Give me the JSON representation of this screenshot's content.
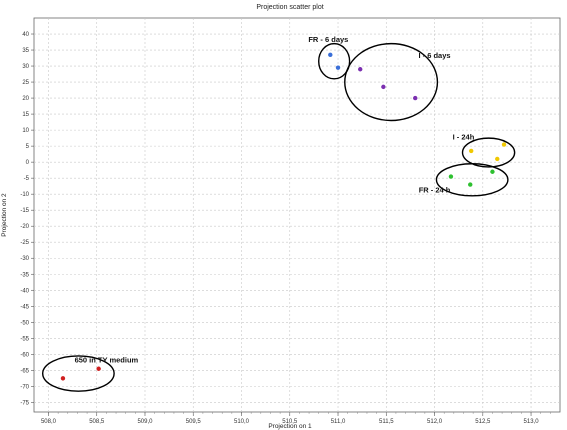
{
  "chart_data": {
    "type": "scatter",
    "title": "Projection scatter plot",
    "xlabel": "Projection on 1",
    "ylabel": "Projection on 2",
    "xlim": [
      507.85,
      513.3
    ],
    "ylim": [
      -78,
      45
    ],
    "xticks": [
      508.0,
      508.5,
      509.0,
      509.5,
      510.0,
      510.5,
      511.0,
      511.5,
      512.0,
      512.5,
      513.0
    ],
    "xtick_labels": [
      "508,0",
      "508,5",
      "509,0",
      "509,5",
      "510,0",
      "510,5",
      "511,0",
      "511,5",
      "512,0",
      "512,5",
      "513,0"
    ],
    "yticks": [
      40,
      35,
      30,
      25,
      20,
      15,
      10,
      5,
      0,
      -5,
      -10,
      -15,
      -20,
      -25,
      -30,
      -35,
      -40,
      -45,
      -50,
      -55,
      -60,
      -65,
      -70,
      -75
    ],
    "ytick_labels": [
      "40",
      "35",
      "30",
      "25",
      "20",
      "15",
      "10",
      "5",
      "0",
      "-5",
      "-10",
      "-15",
      "-20",
      "-25",
      "-30",
      "-35",
      "-40",
      "-45",
      "-50",
      "-55",
      "-60",
      "-65",
      "-70",
      "-75"
    ],
    "grid": true,
    "legend": "none",
    "series": [
      {
        "color": "#3a6fd8",
        "points": [
          [
            510.92,
            33.5
          ],
          [
            511.0,
            29.5
          ]
        ]
      },
      {
        "color": "#7b2fb0",
        "points": [
          [
            511.23,
            29.0
          ],
          [
            511.47,
            23.5
          ],
          [
            511.8,
            20.0
          ]
        ]
      },
      {
        "color": "#f0c800",
        "points": [
          [
            512.38,
            3.5
          ],
          [
            512.65,
            1.0
          ],
          [
            512.72,
            5.5
          ]
        ]
      },
      {
        "color": "#2ec030",
        "points": [
          [
            512.17,
            -4.5
          ],
          [
            512.37,
            -7.0
          ],
          [
            512.6,
            -3.0
          ]
        ]
      },
      {
        "color": "#d02020",
        "points": [
          [
            508.15,
            -67.5
          ],
          [
            508.52,
            -64.5
          ]
        ]
      }
    ],
    "annotations": [
      {
        "text": "FR - 6 days",
        "x": 510.9,
        "y": 37.5
      },
      {
        "text": "I - 6 days",
        "x": 512.0,
        "y": 32.5
      },
      {
        "text": "I - 24h",
        "x": 512.3,
        "y": 7.0
      },
      {
        "text": "FR - 24 h",
        "x": 512.0,
        "y": -9.5
      },
      {
        "text": "650 in TY medium",
        "x": 508.6,
        "y": -62.5
      }
    ],
    "clusters": [
      {
        "cx": 510.96,
        "cy": 31.5,
        "rx": 0.16,
        "ry": 5.5
      },
      {
        "cx": 511.55,
        "cy": 25.0,
        "rx": 0.48,
        "ry": 12.0
      },
      {
        "cx": 512.56,
        "cy": 3.0,
        "rx": 0.27,
        "ry": 4.5
      },
      {
        "cx": 512.39,
        "cy": -5.5,
        "rx": 0.37,
        "ry": 5.0
      },
      {
        "cx": 508.31,
        "cy": -66.0,
        "rx": 0.37,
        "ry": 5.5
      }
    ]
  }
}
